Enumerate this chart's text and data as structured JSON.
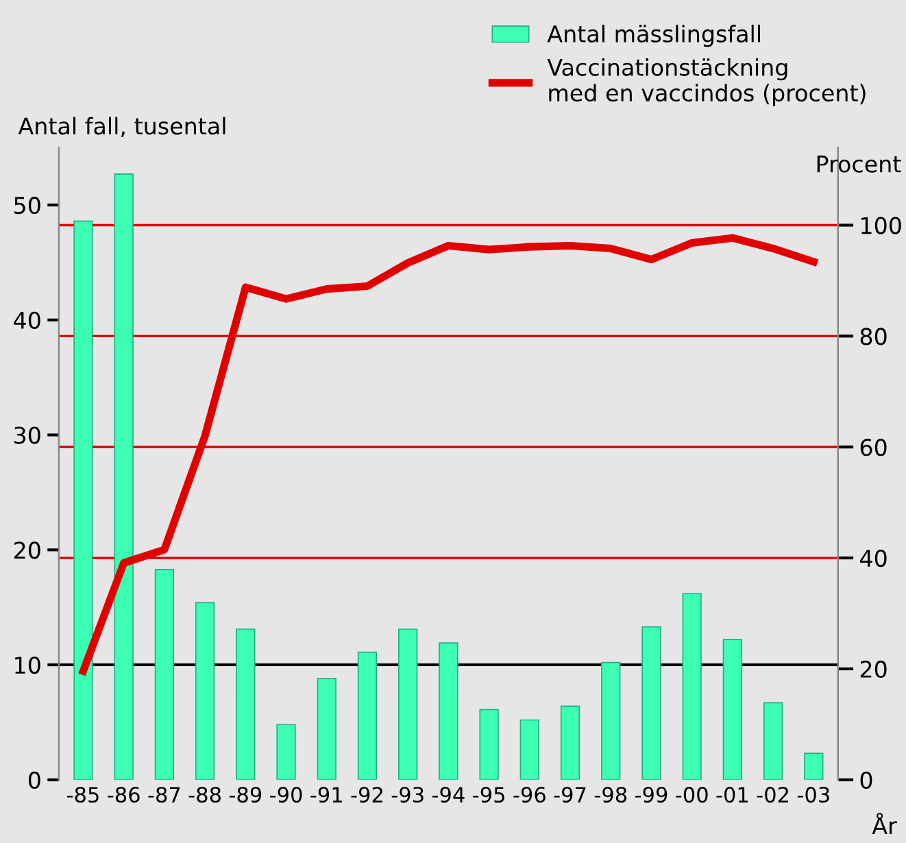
{
  "chart_data": {
    "type": "bar",
    "ylabel": "Antal fall, tusental",
    "y2label": "Procent",
    "xlabel": "År",
    "categories": [
      "-85",
      "-86",
      "-87",
      "-88",
      "-89",
      "-90",
      "-91",
      "-92",
      "-93",
      "-94",
      "-95",
      "-96",
      "-97",
      "-98",
      "-99",
      "-00",
      "-01",
      "-02",
      "-03"
    ],
    "series": [
      {
        "name": "Antal mässlingsfall",
        "color": "#3cffb4",
        "values": [
          48.6,
          52.7,
          18.3,
          15.4,
          13.1,
          4.8,
          8.8,
          11.1,
          13.1,
          11.9,
          6.1,
          5.2,
          6.4,
          10.2,
          13.3,
          16.2,
          12.2,
          6.7,
          2.3
        ]
      },
      {
        "name": "Vaccinationstäckning\nmed en vaccindos (procent)",
        "type": "line",
        "axis": "y2",
        "color": "#e00000",
        "values": [
          19.6,
          39.1,
          41.5,
          62,
          88.8,
          86.7,
          88.5,
          89.0,
          93.2,
          96.3,
          95.6,
          96.1,
          96.3,
          95.8,
          93.8,
          96.8,
          97.7,
          95.8,
          93.4
        ]
      }
    ],
    "ylim": [
      0,
      55
    ],
    "yticks": [
      0,
      10,
      20,
      30,
      40,
      50
    ],
    "y2lim": [
      0,
      114
    ],
    "y2ticks": [
      0,
      20,
      40,
      60,
      80,
      100
    ],
    "ref_lines": [
      {
        "axis": "y",
        "value": 10,
        "color": "#000000"
      },
      {
        "axis": "y2",
        "value": 40,
        "color": "#e00000"
      },
      {
        "axis": "y2",
        "value": 60,
        "color": "#e00000"
      },
      {
        "axis": "y2",
        "value": 80,
        "color": "#e00000"
      },
      {
        "axis": "y2",
        "value": 100,
        "color": "#e00000"
      }
    ],
    "grid": false,
    "legend": "top right",
    "marker": "none",
    "line_style": "solid"
  }
}
